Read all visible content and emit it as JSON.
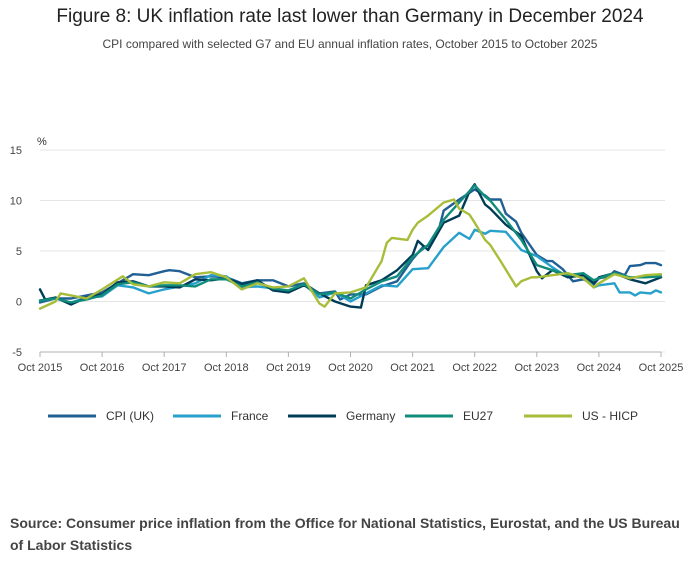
{
  "title": "Figure 8: UK inflation rate last lower than Germany in December 2024",
  "subtitle": "CPI compared with selected G7 and EU annual inflation rates, October 2015 to October 2025",
  "source": "Source: Consumer price inflation from the Office for National Statistics, Eurostat, and the US Bureau of Labor Statistics",
  "chart_data": {
    "type": "line",
    "title": "Figure 8: UK inflation rate last lower than Germany in December 2024",
    "ylabel": "%",
    "xlabel": "",
    "ylim": [
      -5,
      15
    ],
    "yticks": [
      -5,
      0,
      5,
      10,
      15
    ],
    "grid": true,
    "legend": "bottom",
    "xlim": [
      "2015-10",
      "2025-10"
    ],
    "xticks": [
      {
        "value": "2015-10",
        "label": "Oct 2015"
      },
      {
        "value": "2016-10",
        "label": "Oct 2016"
      },
      {
        "value": "2017-10",
        "label": "Oct 2017"
      },
      {
        "value": "2018-10",
        "label": "Oct 2018"
      },
      {
        "value": "2019-10",
        "label": "Oct 2019"
      },
      {
        "value": "2020-10",
        "label": "Oct 2020"
      },
      {
        "value": "2021-10",
        "label": "Oct 2021"
      },
      {
        "value": "2022-10",
        "label": "Oct 2022"
      },
      {
        "value": "2023-10",
        "label": "Oct 2023"
      },
      {
        "value": "2024-10",
        "label": "Oct 2024"
      },
      {
        "value": "2025-10",
        "label": "Oct 2025"
      }
    ],
    "series": [
      {
        "name": "CPI (UK)",
        "color": "#206095",
        "points": [
          [
            "2015-10",
            -0.1
          ],
          [
            "2016-01",
            0.3
          ],
          [
            "2016-04",
            0.3
          ],
          [
            "2016-07",
            0.6
          ],
          [
            "2016-10",
            0.9
          ],
          [
            "2017-01",
            1.8
          ],
          [
            "2017-04",
            2.7
          ],
          [
            "2017-07",
            2.6
          ],
          [
            "2017-10",
            3.0
          ],
          [
            "2017-11",
            3.1
          ],
          [
            "2018-01",
            3.0
          ],
          [
            "2018-04",
            2.4
          ],
          [
            "2018-07",
            2.5
          ],
          [
            "2018-10",
            2.4
          ],
          [
            "2019-01",
            1.8
          ],
          [
            "2019-04",
            2.1
          ],
          [
            "2019-07",
            2.1
          ],
          [
            "2019-10",
            1.5
          ],
          [
            "2020-01",
            1.8
          ],
          [
            "2020-04",
            0.8
          ],
          [
            "2020-07",
            1.0
          ],
          [
            "2020-08",
            0.2
          ],
          [
            "2020-10",
            0.7
          ],
          [
            "2021-01",
            0.7
          ],
          [
            "2021-04",
            1.5
          ],
          [
            "2021-07",
            2.0
          ],
          [
            "2021-10",
            4.2
          ],
          [
            "2021-12",
            5.4
          ],
          [
            "2022-01",
            5.5
          ],
          [
            "2022-03",
            7.0
          ],
          [
            "2022-04",
            9.0
          ],
          [
            "2022-07",
            10.1
          ],
          [
            "2022-10",
            11.1
          ],
          [
            "2022-12",
            10.5
          ],
          [
            "2023-01",
            10.1
          ],
          [
            "2023-03",
            10.1
          ],
          [
            "2023-04",
            8.7
          ],
          [
            "2023-06",
            7.9
          ],
          [
            "2023-07",
            6.8
          ],
          [
            "2023-10",
            4.6
          ],
          [
            "2023-12",
            4.0
          ],
          [
            "2024-01",
            4.0
          ],
          [
            "2024-03",
            3.2
          ],
          [
            "2024-05",
            2.0
          ],
          [
            "2024-07",
            2.2
          ],
          [
            "2024-09",
            1.7
          ],
          [
            "2024-10",
            2.3
          ],
          [
            "2024-12",
            2.5
          ],
          [
            "2025-01",
            3.0
          ],
          [
            "2025-03",
            2.6
          ],
          [
            "2025-04",
            3.5
          ],
          [
            "2025-06",
            3.6
          ],
          [
            "2025-07",
            3.8
          ],
          [
            "2025-09",
            3.8
          ],
          [
            "2025-10",
            3.6
          ]
        ]
      },
      {
        "name": "France",
        "color": "#27a0cc",
        "points": [
          [
            "2015-10",
            0.1
          ],
          [
            "2016-01",
            0.3
          ],
          [
            "2016-04",
            -0.1
          ],
          [
            "2016-07",
            0.4
          ],
          [
            "2016-10",
            0.5
          ],
          [
            "2017-01",
            1.6
          ],
          [
            "2017-04",
            1.4
          ],
          [
            "2017-07",
            0.8
          ],
          [
            "2017-10",
            1.2
          ],
          [
            "2018-01",
            1.5
          ],
          [
            "2018-04",
            1.8
          ],
          [
            "2018-07",
            2.6
          ],
          [
            "2018-10",
            2.5
          ],
          [
            "2019-01",
            1.4
          ],
          [
            "2019-04",
            1.5
          ],
          [
            "2019-07",
            1.3
          ],
          [
            "2019-10",
            0.9
          ],
          [
            "2020-01",
            1.7
          ],
          [
            "2020-04",
            0.4
          ],
          [
            "2020-07",
            0.9
          ],
          [
            "2020-10",
            0.0
          ],
          [
            "2021-01",
            0.8
          ],
          [
            "2021-04",
            1.6
          ],
          [
            "2021-07",
            1.5
          ],
          [
            "2021-10",
            3.2
          ],
          [
            "2022-01",
            3.3
          ],
          [
            "2022-04",
            5.4
          ],
          [
            "2022-07",
            6.8
          ],
          [
            "2022-09",
            6.2
          ],
          [
            "2022-10",
            7.1
          ],
          [
            "2022-12",
            6.7
          ],
          [
            "2023-01",
            7.0
          ],
          [
            "2023-04",
            6.9
          ],
          [
            "2023-07",
            5.1
          ],
          [
            "2023-10",
            4.5
          ],
          [
            "2024-01",
            3.4
          ],
          [
            "2024-04",
            2.4
          ],
          [
            "2024-07",
            2.7
          ],
          [
            "2024-09",
            1.4
          ],
          [
            "2024-10",
            1.6
          ],
          [
            "2025-01",
            1.8
          ],
          [
            "2025-02",
            0.9
          ],
          [
            "2025-04",
            0.9
          ],
          [
            "2025-05",
            0.6
          ],
          [
            "2025-06",
            0.9
          ],
          [
            "2025-08",
            0.8
          ],
          [
            "2025-09",
            1.1
          ],
          [
            "2025-10",
            0.9
          ]
        ]
      },
      {
        "name": "Germany",
        "color": "#003c57",
        "points": [
          [
            "2015-10",
            1.2
          ],
          [
            "2015-11",
            0.2
          ],
          [
            "2016-01",
            0.4
          ],
          [
            "2016-04",
            -0.3
          ],
          [
            "2016-07",
            0.4
          ],
          [
            "2016-10",
            0.7
          ],
          [
            "2017-01",
            1.9
          ],
          [
            "2017-04",
            2.0
          ],
          [
            "2017-07",
            1.5
          ],
          [
            "2017-10",
            1.5
          ],
          [
            "2018-01",
            1.4
          ],
          [
            "2018-04",
            2.2
          ],
          [
            "2018-07",
            2.1
          ],
          [
            "2018-10",
            2.3
          ],
          [
            "2019-01",
            1.7
          ],
          [
            "2019-04",
            2.1
          ],
          [
            "2019-07",
            1.1
          ],
          [
            "2019-10",
            0.9
          ],
          [
            "2020-01",
            1.6
          ],
          [
            "2020-04",
            0.8
          ],
          [
            "2020-07",
            0.0
          ],
          [
            "2020-10",
            -0.5
          ],
          [
            "2020-12",
            -0.6
          ],
          [
            "2021-01",
            1.6
          ],
          [
            "2021-04",
            2.1
          ],
          [
            "2021-07",
            3.1
          ],
          [
            "2021-10",
            4.6
          ],
          [
            "2021-11",
            6.0
          ],
          [
            "2022-01",
            5.1
          ],
          [
            "2022-04",
            7.8
          ],
          [
            "2022-07",
            8.5
          ],
          [
            "2022-09",
            10.9
          ],
          [
            "2022-10",
            11.6
          ],
          [
            "2022-12",
            9.6
          ],
          [
            "2023-01",
            9.2
          ],
          [
            "2023-04",
            7.6
          ],
          [
            "2023-07",
            6.5
          ],
          [
            "2023-10",
            3.0
          ],
          [
            "2023-11",
            2.3
          ],
          [
            "2024-01",
            3.1
          ],
          [
            "2024-04",
            2.4
          ],
          [
            "2024-07",
            2.6
          ],
          [
            "2024-09",
            1.8
          ],
          [
            "2024-10",
            2.4
          ],
          [
            "2025-01",
            2.8
          ],
          [
            "2025-04",
            2.2
          ],
          [
            "2025-07",
            1.8
          ],
          [
            "2025-10",
            2.4
          ]
        ]
      },
      {
        "name": "EU27",
        "color": "#118c7b",
        "points": [
          [
            "2015-10",
            0.1
          ],
          [
            "2016-01",
            0.3
          ],
          [
            "2016-04",
            -0.1
          ],
          [
            "2016-07",
            0.2
          ],
          [
            "2016-10",
            0.6
          ],
          [
            "2017-01",
            1.7
          ],
          [
            "2017-04",
            1.9
          ],
          [
            "2017-07",
            1.5
          ],
          [
            "2017-10",
            1.6
          ],
          [
            "2018-01",
            1.6
          ],
          [
            "2018-04",
            1.5
          ],
          [
            "2018-07",
            2.2
          ],
          [
            "2018-10",
            2.2
          ],
          [
            "2019-01",
            1.5
          ],
          [
            "2019-04",
            1.9
          ],
          [
            "2019-07",
            1.3
          ],
          [
            "2019-10",
            1.1
          ],
          [
            "2020-01",
            1.7
          ],
          [
            "2020-04",
            0.7
          ],
          [
            "2020-07",
            0.9
          ],
          [
            "2020-10",
            0.3
          ],
          [
            "2021-01",
            1.2
          ],
          [
            "2021-04",
            2.0
          ],
          [
            "2021-07",
            2.5
          ],
          [
            "2021-10",
            4.4
          ],
          [
            "2022-01",
            5.6
          ],
          [
            "2022-04",
            8.1
          ],
          [
            "2022-07",
            9.8
          ],
          [
            "2022-10",
            11.5
          ],
          [
            "2022-12",
            10.4
          ],
          [
            "2023-01",
            10.0
          ],
          [
            "2023-04",
            8.1
          ],
          [
            "2023-07",
            6.1
          ],
          [
            "2023-10",
            3.6
          ],
          [
            "2024-01",
            3.1
          ],
          [
            "2024-04",
            2.6
          ],
          [
            "2024-07",
            2.8
          ],
          [
            "2024-09",
            2.1
          ],
          [
            "2024-10",
            2.3
          ],
          [
            "2025-01",
            2.8
          ],
          [
            "2025-04",
            2.4
          ],
          [
            "2025-07",
            2.4
          ],
          [
            "2025-10",
            2.5
          ]
        ]
      },
      {
        "name": "US - HICP",
        "color": "#a8bd3a",
        "points": [
          [
            "2015-10",
            -0.7
          ],
          [
            "2016-01",
            0.0
          ],
          [
            "2016-02",
            0.8
          ],
          [
            "2016-04",
            0.6
          ],
          [
            "2016-07",
            0.3
          ],
          [
            "2016-10",
            1.2
          ],
          [
            "2017-02",
            2.5
          ],
          [
            "2017-04",
            1.7
          ],
          [
            "2017-07",
            1.5
          ],
          [
            "2017-10",
            1.9
          ],
          [
            "2018-01",
            1.8
          ],
          [
            "2018-04",
            2.7
          ],
          [
            "2018-07",
            2.9
          ],
          [
            "2018-10",
            2.4
          ],
          [
            "2019-01",
            1.2
          ],
          [
            "2019-04",
            1.8
          ],
          [
            "2019-07",
            1.4
          ],
          [
            "2019-10",
            1.5
          ],
          [
            "2020-01",
            2.3
          ],
          [
            "2020-04",
            -0.2
          ],
          [
            "2020-05",
            -0.5
          ],
          [
            "2020-07",
            0.8
          ],
          [
            "2020-10",
            0.9
          ],
          [
            "2021-01",
            1.4
          ],
          [
            "2021-04",
            4.0
          ],
          [
            "2021-05",
            5.8
          ],
          [
            "2021-06",
            6.3
          ],
          [
            "2021-09",
            6.1
          ],
          [
            "2021-10",
            7.1
          ],
          [
            "2021-11",
            7.8
          ],
          [
            "2022-01",
            8.5
          ],
          [
            "2022-04",
            9.8
          ],
          [
            "2022-06",
            10.1
          ],
          [
            "2022-07",
            9.2
          ],
          [
            "2022-09",
            8.6
          ],
          [
            "2022-10",
            7.8
          ],
          [
            "2022-12",
            6.1
          ],
          [
            "2023-01",
            5.6
          ],
          [
            "2023-03",
            4.0
          ],
          [
            "2023-06",
            1.5
          ],
          [
            "2023-07",
            2.0
          ],
          [
            "2023-09",
            2.4
          ],
          [
            "2023-10",
            2.4
          ],
          [
            "2024-01",
            2.6
          ],
          [
            "2024-04",
            2.8
          ],
          [
            "2024-07",
            2.3
          ],
          [
            "2024-09",
            1.4
          ],
          [
            "2024-10",
            1.8
          ],
          [
            "2025-01",
            2.7
          ],
          [
            "2025-04",
            2.3
          ],
          [
            "2025-07",
            2.6
          ],
          [
            "2025-10",
            2.7
          ]
        ]
      }
    ]
  }
}
